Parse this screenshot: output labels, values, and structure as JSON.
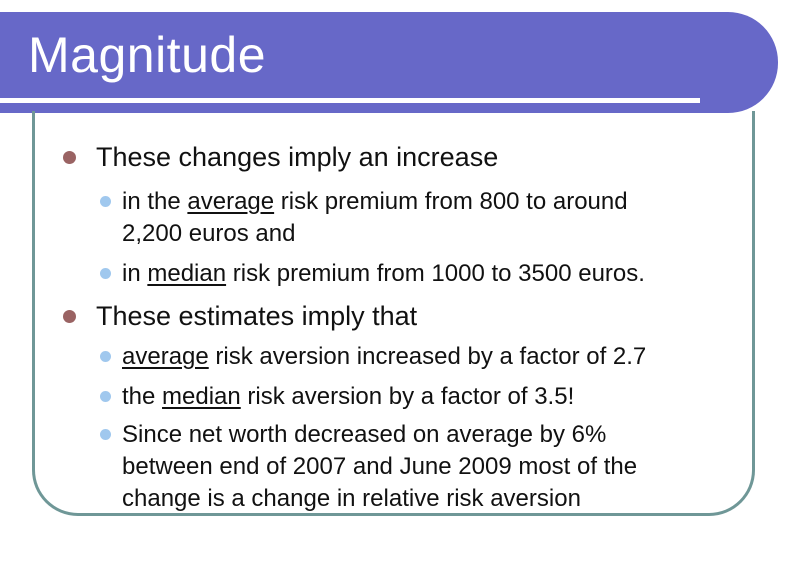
{
  "title": "Magnitude",
  "colors": {
    "title_bar": "#6768C8",
    "title_text": "#FFFFFF",
    "content_border": "#6F9797",
    "bullet_level1": "#9A6363",
    "bullet_level2": "#A0C8EE",
    "body_text": "#111111"
  },
  "body": {
    "items": [
      {
        "level": 1,
        "lines": [
          {
            "segs": [
              {
                "t": "These changes imply an increase"
              }
            ]
          }
        ]
      },
      {
        "level": 2,
        "lines": [
          {
            "segs": [
              {
                "t": "in the "
              },
              {
                "t": "average",
                "u": true
              },
              {
                "t": " risk premium from 800 to around"
              }
            ]
          },
          {
            "segs": [
              {
                "t": "2,200 euros and"
              }
            ]
          }
        ]
      },
      {
        "level": 2,
        "lines": [
          {
            "segs": [
              {
                "t": "in "
              },
              {
                "t": "median",
                "u": true
              },
              {
                "t": " risk premium from 1000 to 3500 euros."
              }
            ]
          }
        ]
      },
      {
        "level": 1,
        "lines": [
          {
            "segs": [
              {
                "t": "These estimates imply that"
              }
            ]
          }
        ]
      },
      {
        "level": 2,
        "lines": [
          {
            "segs": [
              {
                "t": "average",
                "u": true
              },
              {
                "t": " risk aversion increased by a factor of 2.7"
              }
            ]
          }
        ]
      },
      {
        "level": 2,
        "lines": [
          {
            "segs": [
              {
                "t": "the "
              },
              {
                "t": "median",
                "u": true
              },
              {
                "t": " risk aversion by a factor of 3.5!"
              }
            ]
          }
        ]
      },
      {
        "level": 2,
        "lines": [
          {
            "segs": [
              {
                "t": "Since net worth decreased on average by 6%"
              }
            ]
          },
          {
            "segs": [
              {
                "t": "between end of 2007 and June 2009 most of the"
              }
            ]
          },
          {
            "segs": [
              {
                "t": "change is a change in relative risk aversion"
              }
            ]
          }
        ]
      }
    ]
  }
}
